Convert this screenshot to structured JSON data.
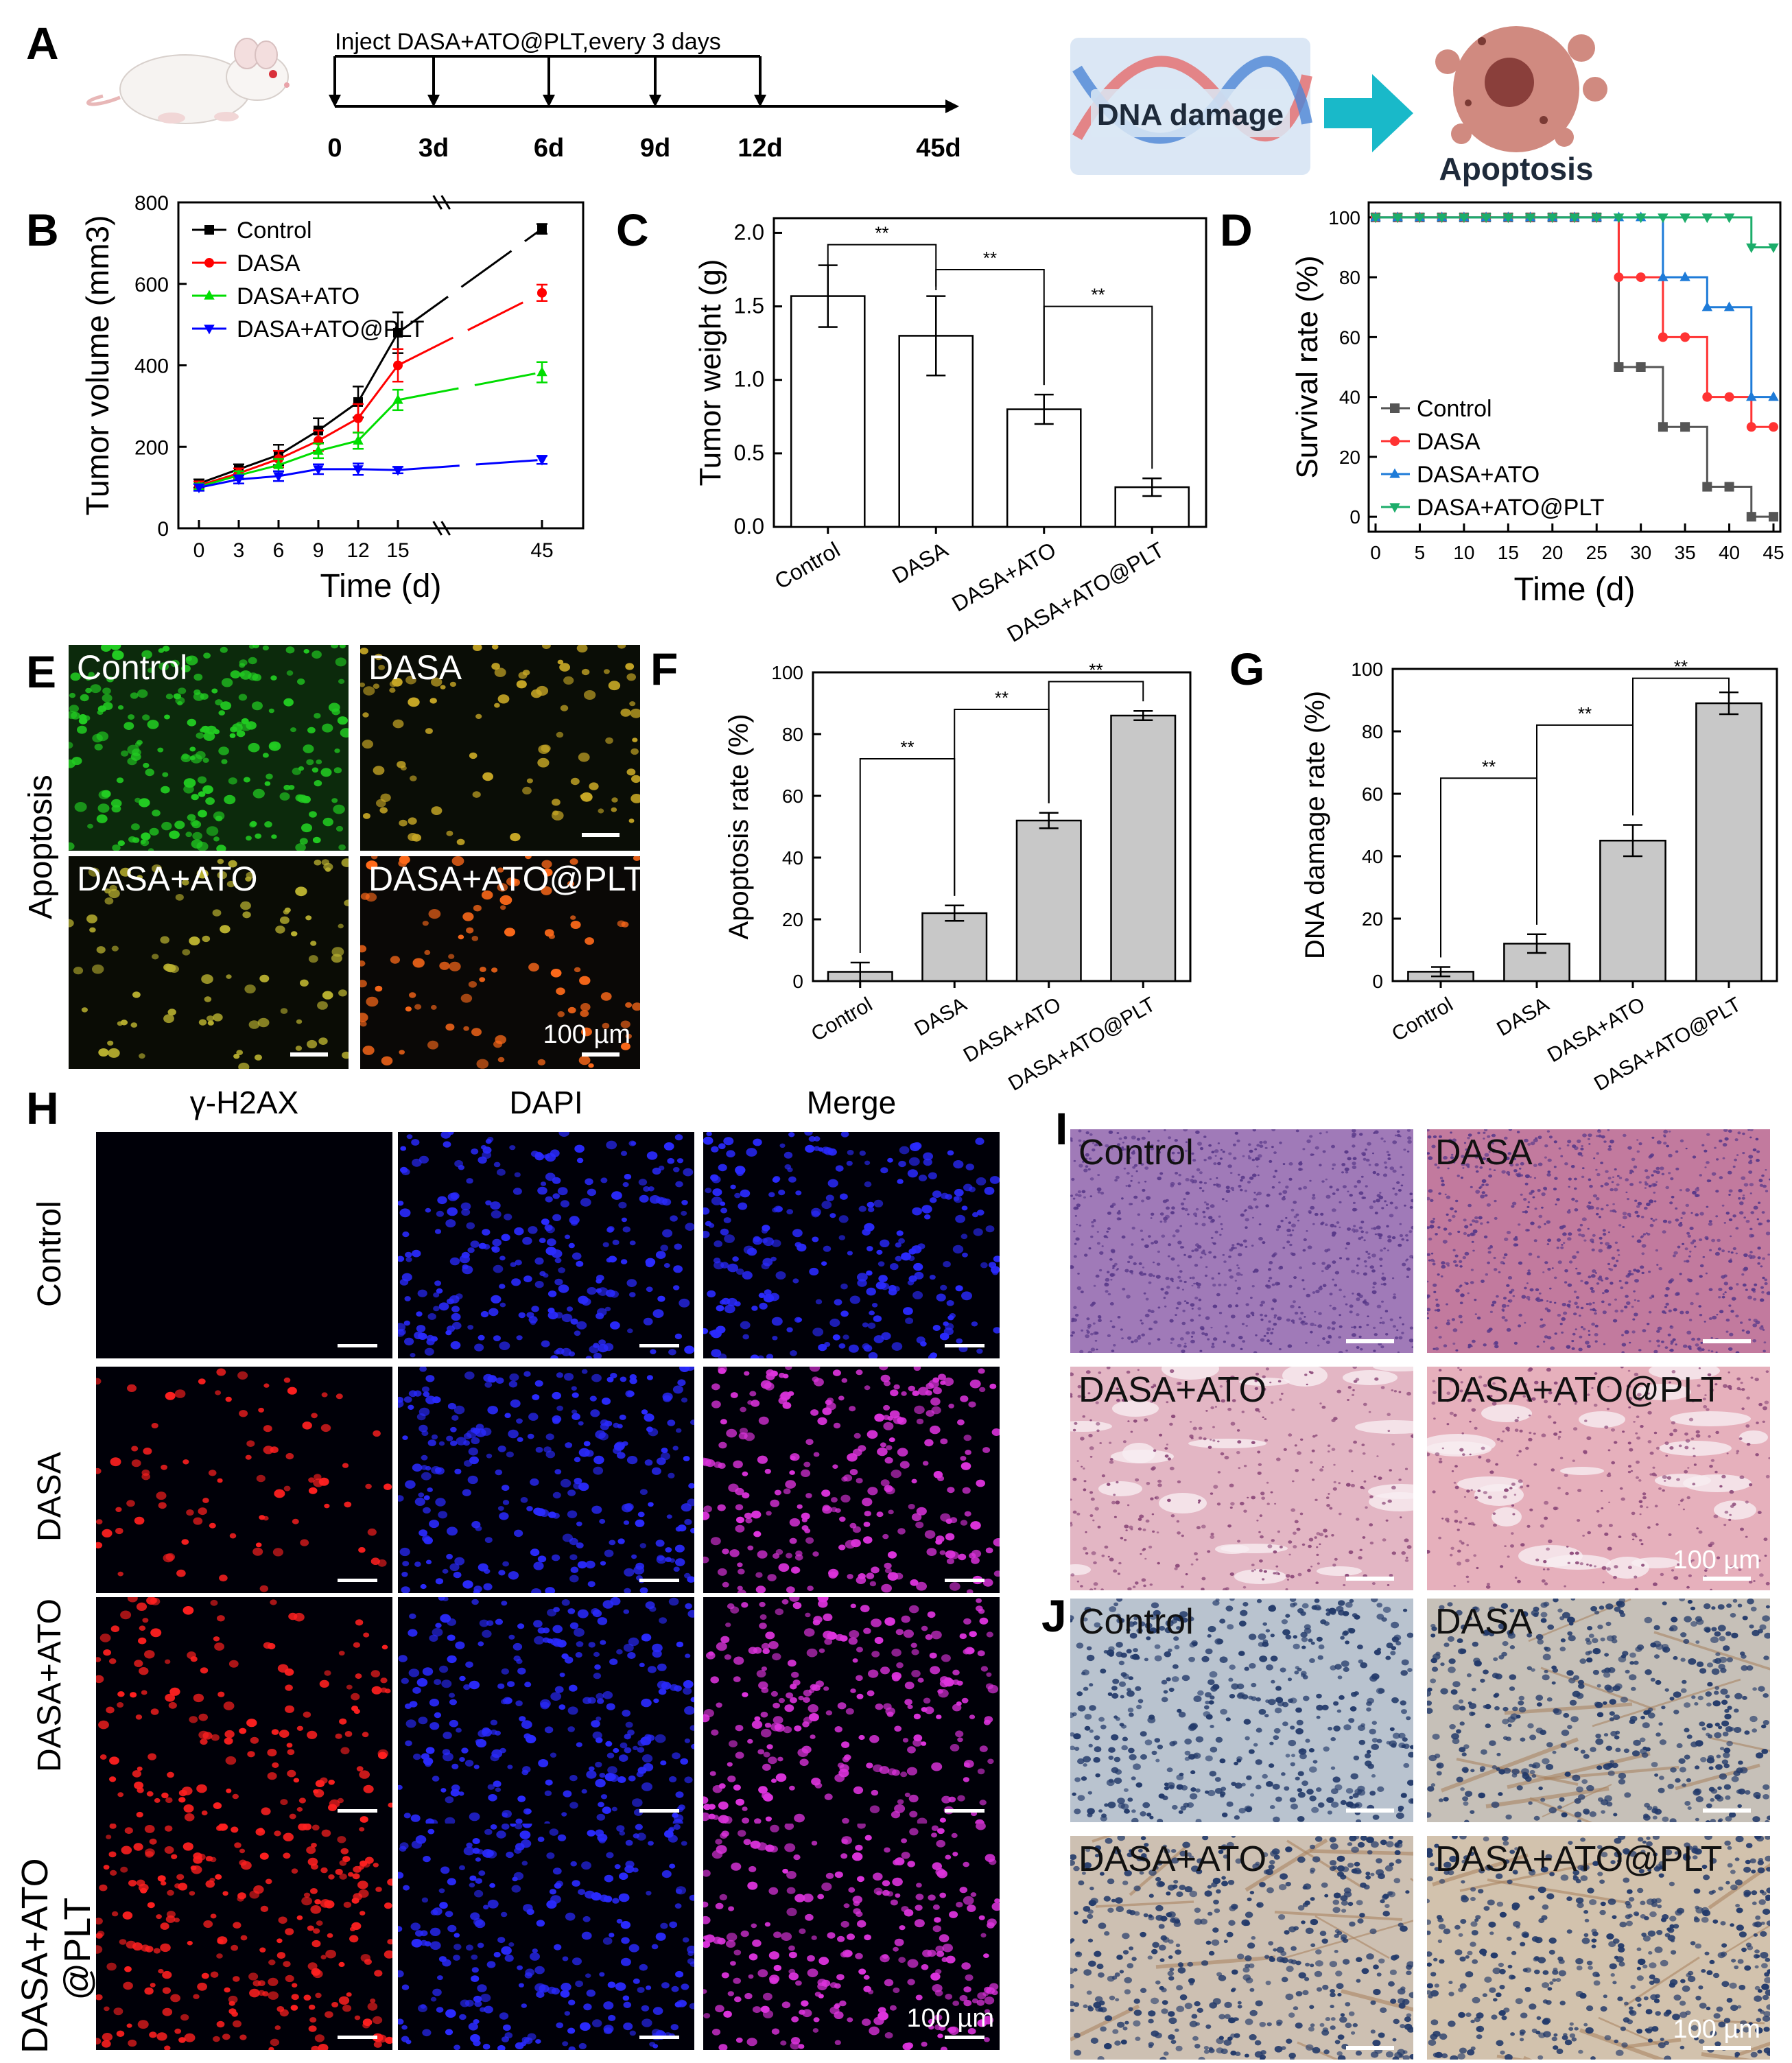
{
  "panel_letters": {
    "A": "A",
    "B": "B",
    "C": "C",
    "D": "D",
    "E": "E",
    "F": "F",
    "G": "G",
    "H": "H",
    "I": "I",
    "J": "J"
  },
  "panelA": {
    "timeline_title": "Inject DASA+ATO@PLT,every 3 days",
    "ticks": [
      "0",
      "3d",
      "6d",
      "9d",
      "12d",
      "45d"
    ],
    "injection_days": [
      "0",
      "3d",
      "6d",
      "9d",
      "12d"
    ],
    "dna_damage_label": "DNA damage",
    "apoptosis_label": "Apoptosis",
    "icons": [
      "mouse-icon",
      "dna-icon",
      "arrow-right-icon",
      "apoptotic-cell-icon"
    ]
  },
  "chart_data": [
    {
      "id": "B",
      "type": "line",
      "xlabel": "Time (d)",
      "ylabel": "Tumor volume (mm3)",
      "x": [
        0,
        3,
        6,
        9,
        12,
        15,
        45
      ],
      "xtick_labels": [
        "0",
        "3",
        "6",
        "9",
        "12",
        "15",
        "45"
      ],
      "axis_break": true,
      "ylim": [
        0,
        800
      ],
      "yticks": [
        0,
        200,
        400,
        600,
        800
      ],
      "series": [
        {
          "name": "Control",
          "color": "#000000",
          "marker": "square",
          "values": [
            110,
            145,
            180,
            240,
            310,
            480,
            735
          ],
          "errors": [
            10,
            12,
            25,
            30,
            38,
            50,
            12
          ]
        },
        {
          "name": "DASA",
          "color": "#ff0000",
          "marker": "circle",
          "values": [
            105,
            135,
            170,
            215,
            270,
            400,
            578
          ],
          "errors": [
            10,
            12,
            20,
            25,
            35,
            40,
            20
          ]
        },
        {
          "name": "DASA+ATO",
          "color": "#00dd00",
          "marker": "triangle-up",
          "values": [
            102,
            130,
            155,
            190,
            215,
            315,
            383
          ],
          "errors": [
            8,
            10,
            15,
            18,
            20,
            25,
            25
          ]
        },
        {
          "name": "DASA+ATO@PLT",
          "color": "#0000ff",
          "marker": "triangle-down",
          "values": [
            100,
            120,
            128,
            145,
            145,
            143,
            168
          ],
          "errors": [
            8,
            10,
            12,
            12,
            14,
            8,
            10
          ]
        }
      ],
      "legend": "top-left"
    },
    {
      "id": "C",
      "type": "bar",
      "ylabel": "Tumor weight (g)",
      "categories": [
        "Control",
        "DASA",
        "DASA+ATO",
        "DASA+ATO@PLT"
      ],
      "values": [
        1.57,
        1.3,
        0.8,
        0.27
      ],
      "errors": [
        0.21,
        0.27,
        0.1,
        0.06
      ],
      "ylim": [
        0,
        2.1
      ],
      "yticks": [
        "0.0",
        "0.5",
        "1.0",
        "1.5",
        "2.0"
      ],
      "significance": [
        "**",
        "**",
        "**"
      ],
      "bar_fill": "#ffffff"
    },
    {
      "id": "D",
      "type": "line",
      "xlabel": "Time (d)",
      "ylabel": "Survival rate (%)",
      "xlim": [
        0,
        45
      ],
      "xticks": [
        0,
        5,
        10,
        15,
        20,
        25,
        30,
        35,
        40,
        45
      ],
      "ylim": [
        -5,
        105
      ],
      "yticks": [
        0,
        20,
        40,
        60,
        80,
        100
      ],
      "series": [
        {
          "name": "Control",
          "color": "#555555",
          "marker": "square",
          "x": [
            0,
            2.5,
            5,
            7.5,
            10,
            12.5,
            15,
            17.5,
            20,
            22.5,
            25,
            27.5,
            30,
            32.5,
            35,
            37.5,
            40,
            42.5,
            45
          ],
          "values": [
            100,
            100,
            100,
            100,
            100,
            100,
            100,
            100,
            100,
            100,
            100,
            50,
            50,
            30,
            30,
            10,
            10,
            0,
            0
          ]
        },
        {
          "name": "DASA",
          "color": "#ff3333",
          "marker": "circle",
          "x": [
            0,
            2.5,
            5,
            7.5,
            10,
            12.5,
            15,
            17.5,
            20,
            22.5,
            25,
            27.5,
            30,
            32.5,
            35,
            37.5,
            40,
            42.5,
            45
          ],
          "values": [
            100,
            100,
            100,
            100,
            100,
            100,
            100,
            100,
            100,
            100,
            100,
            80,
            80,
            60,
            60,
            40,
            40,
            30,
            30
          ]
        },
        {
          "name": "DASA+ATO",
          "color": "#1e7bd8",
          "marker": "triangle-up",
          "x": [
            0,
            2.5,
            5,
            7.5,
            10,
            12.5,
            15,
            17.5,
            20,
            22.5,
            25,
            27.5,
            30,
            32.5,
            35,
            37.5,
            40,
            42.5,
            45
          ],
          "values": [
            100,
            100,
            100,
            100,
            100,
            100,
            100,
            100,
            100,
            100,
            100,
            100,
            100,
            80,
            80,
            70,
            70,
            40,
            40
          ]
        },
        {
          "name": "DASA+ATO@PLT",
          "color": "#1cad6a",
          "marker": "triangle-down",
          "x": [
            0,
            2.5,
            5,
            7.5,
            10,
            12.5,
            15,
            17.5,
            20,
            22.5,
            25,
            27.5,
            30,
            32.5,
            35,
            37.5,
            40,
            42.5,
            45
          ],
          "values": [
            100,
            100,
            100,
            100,
            100,
            100,
            100,
            100,
            100,
            100,
            100,
            100,
            100,
            100,
            100,
            100,
            100,
            90,
            90
          ]
        }
      ],
      "legend": "bottom-left"
    },
    {
      "id": "F",
      "type": "bar",
      "ylabel": "Apoptosis rate (%)",
      "categories": [
        "Control",
        "DASA",
        "DASA+ATO",
        "DASA+ATO@PLT"
      ],
      "values": [
        3,
        22,
        52,
        86
      ],
      "errors": [
        3,
        2.5,
        2.5,
        1.5
      ],
      "ylim": [
        0,
        100
      ],
      "yticks": [
        0,
        20,
        40,
        60,
        80,
        100
      ],
      "significance": [
        "**",
        "**",
        "**"
      ],
      "bar_fill": "#c8c8c8"
    },
    {
      "id": "G",
      "type": "bar",
      "ylabel": "DNA damage rate (%)",
      "categories": [
        "Control",
        "DASA",
        "DASA+ATO",
        "DASA+ATO@PLT"
      ],
      "values": [
        3,
        12,
        45,
        89
      ],
      "errors": [
        1.5,
        3,
        5,
        3.5
      ],
      "ylim": [
        0,
        100
      ],
      "yticks": [
        0,
        20,
        40,
        60,
        80,
        100
      ],
      "significance": [
        "**",
        "**",
        "**"
      ],
      "bar_fill": "#c8c8c8"
    }
  ],
  "panelE": {
    "row_label": "Apoptosis",
    "images": [
      {
        "label": "Control",
        "bg": "#0c2a0c",
        "dot": "#22cc22"
      },
      {
        "label": "DASA",
        "bg": "#0a0d06",
        "dot": "#c8a826"
      },
      {
        "label": "DASA+ATO",
        "bg": "#0a0c05",
        "dot": "#b8b030"
      },
      {
        "label": "DASA+ATO@PLT",
        "bg": "#0a0806",
        "dot": "#ff6a1a"
      }
    ],
    "scale_label": "100 µm"
  },
  "panelH": {
    "columns": [
      "γ-H2AX",
      "DAPI",
      "Merge"
    ],
    "rows": [
      "Control",
      "DASA",
      "DASA+ATO",
      "DASA+ATO\n@PLT"
    ],
    "row_line1": [
      "Control",
      "DASA",
      "DASA+ATO",
      "DASA+ATO"
    ],
    "row_line2": [
      "",
      "",
      "",
      "@PLT"
    ],
    "scale_label": "100 µm",
    "colors": {
      "h2ax": "#ff2020",
      "dapi": "#2a2aff",
      "merge": "#dd33dd",
      "bg": "#000008"
    }
  },
  "panelI": {
    "images": [
      "Control",
      "DASA",
      "DASA+ATO",
      "DASA+ATO@PLT"
    ],
    "scale_label": "100 µm",
    "colors": [
      "#a07ab8",
      "#c27a9e",
      "#e3b6c4",
      "#e6b0bc"
    ]
  },
  "panelJ": {
    "images": [
      "Control",
      "DASA",
      "DASA+ATO",
      "DASA+ATO@PLT"
    ],
    "scale_label": "100 µm",
    "colors": [
      "#b9c3cf",
      "#c6c0b8",
      "#cdc0b2",
      "#d2c2ad"
    ]
  }
}
